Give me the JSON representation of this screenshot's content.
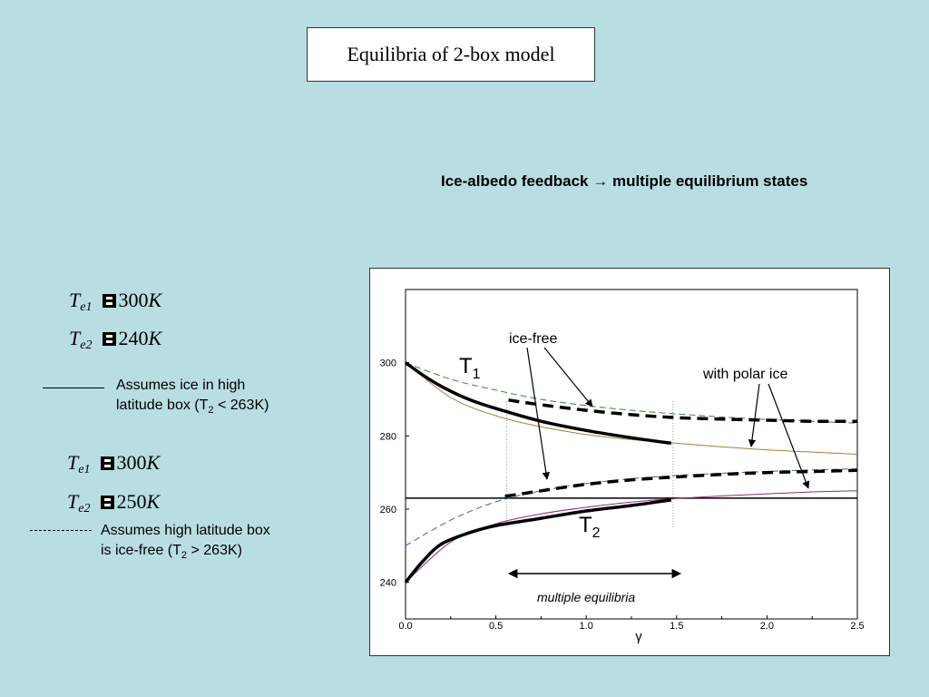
{
  "title": "Equilibria of 2-box model",
  "subtitle": "Ice-albedo feedback → multiple equilibrium states",
  "case1": {
    "eq1": {
      "var": "T",
      "sub": "e1",
      "value": "300",
      "unit": "K"
    },
    "eq2": {
      "var": "T",
      "sub": "e2",
      "value": "240",
      "unit": "K"
    },
    "legend_line1": "Assumes ice in high",
    "legend_line2_pre": "latitude box (T",
    "legend_line2_sub": "2",
    "legend_line2_post": " < 263K)"
  },
  "case2": {
    "eq1": {
      "var": "T",
      "sub": "e1",
      "value": "300",
      "unit": "K"
    },
    "eq2": {
      "var": "T",
      "sub": "e2",
      "value": "250",
      "unit": "K"
    },
    "legend_line1": "Assumes high latitude box",
    "legend_line2_pre": "is ice-free (T",
    "legend_line2_sub": "2",
    "legend_line2_post": " > 263K)"
  },
  "chart_data": {
    "type": "line",
    "xlabel": "γ",
    "xlim": [
      0,
      2.5
    ],
    "ylim": [
      230,
      320
    ],
    "x_ticks": [
      "0.0",
      "0.5",
      "1.0",
      "1.5",
      "2.0",
      "2.5"
    ],
    "y_ticks": [
      "240",
      "260",
      "280",
      "300"
    ],
    "threshold_y": 263,
    "series": [
      {
        "name": "T1 ice-free",
        "style": "dashed",
        "color": "#2e8b2e",
        "x": [
          0,
          0.25,
          0.5,
          0.75,
          1.0,
          1.25,
          1.5,
          1.75,
          2.0,
          2.25,
          2.5
        ],
        "y": [
          300,
          295.5,
          292.5,
          290,
          288.3,
          287,
          286,
          285.2,
          284.5,
          284,
          283.5
        ]
      },
      {
        "name": "T1 with polar ice",
        "style": "solid",
        "color": "#b07a3a",
        "x": [
          0,
          0.25,
          0.5,
          0.75,
          1.0,
          1.25,
          1.5,
          1.75,
          2.0,
          2.25,
          2.5
        ],
        "y": [
          300,
          290.5,
          285.5,
          282.5,
          280.4,
          279,
          278,
          277,
          276.2,
          275.6,
          275
        ]
      },
      {
        "name": "T2 ice-free",
        "style": "dashed",
        "color": "#3a5fa8",
        "x": [
          0,
          0.25,
          0.5,
          0.75,
          1.0,
          1.25,
          1.5,
          1.75,
          2.0,
          2.25,
          2.5
        ],
        "y": [
          250,
          257,
          262,
          265,
          267,
          268.3,
          269.2,
          269.8,
          270.3,
          270.7,
          271
        ]
      },
      {
        "name": "T2 with polar ice",
        "style": "solid",
        "color": "#8b2f6b",
        "x": [
          0,
          0.25,
          0.5,
          0.75,
          1.0,
          1.25,
          1.5,
          1.75,
          2.0,
          2.25,
          2.5
        ],
        "y": [
          240,
          251,
          256,
          258.7,
          260.5,
          261.9,
          262.9,
          263.6,
          264.2,
          264.7,
          265
        ]
      }
    ],
    "stable_branches": [
      {
        "style": "thick-solid",
        "x": [
          0,
          0.1,
          0.2,
          0.35,
          0.5,
          0.75,
          1.0,
          1.25,
          1.47
        ],
        "y": [
          300,
          296.5,
          293.5,
          290,
          287.5,
          284,
          281.5,
          279.5,
          278
        ]
      },
      {
        "style": "thick-dashed",
        "x": [
          0.57,
          0.75,
          1.0,
          1.25,
          1.5,
          1.75,
          2.0,
          2.25,
          2.5
        ],
        "y": [
          289.8,
          288.5,
          287,
          285.8,
          285,
          284.6,
          284.3,
          284,
          284
        ]
      },
      {
        "style": "thick-solid",
        "x": [
          0,
          0.1,
          0.2,
          0.35,
          0.5,
          0.75,
          1.0,
          1.25,
          1.47
        ],
        "y": [
          240,
          246,
          250.5,
          253.5,
          255.5,
          257.5,
          259.5,
          261,
          262.5
        ]
      },
      {
        "style": "thick-dashed",
        "x": [
          0.55,
          0.75,
          1.0,
          1.25,
          1.5,
          1.75,
          2.0,
          2.25,
          2.5
        ],
        "y": [
          263.5,
          265,
          266.8,
          268,
          268.8,
          269.5,
          270,
          270.3,
          270.6
        ]
      }
    ],
    "annotations": {
      "t1_label": "T",
      "t1_sub": "1",
      "t2_label": "T",
      "t2_sub": "2",
      "ice_free": "ice-free",
      "with_polar_ice": "with polar ice",
      "multiple_equilibria": "multiple equilibria"
    }
  }
}
